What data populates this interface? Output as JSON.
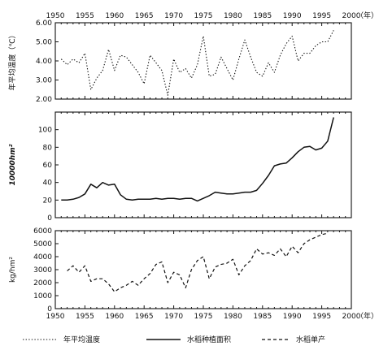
{
  "chart_data": [
    {
      "type": "line",
      "panel": "top",
      "ylabel": "年平均温度（℃）",
      "ylim": [
        2.0,
        6.0
      ],
      "yticks": [
        "2.00",
        "3.00",
        "4.00",
        "5.00",
        "6.00"
      ],
      "xlim": [
        1950,
        2000
      ],
      "xticks": [
        "1950",
        "1955",
        "1960",
        "1965",
        "1970",
        "1975",
        "1980",
        "1985",
        "1990",
        "1995",
        "2000"
      ],
      "xunit": "（年）",
      "series": [
        {
          "name": "年平均温度",
          "style": "dotted",
          "x": [
            1951,
            1952,
            1953,
            1954,
            1955,
            1956,
            1957,
            1958,
            1959,
            1960,
            1961,
            1962,
            1963,
            1964,
            1965,
            1966,
            1967,
            1968,
            1969,
            1970,
            1971,
            1972,
            1973,
            1974,
            1975,
            1976,
            1977,
            1978,
            1979,
            1980,
            1981,
            1982,
            1983,
            1984,
            1985,
            1986,
            1987,
            1988,
            1989,
            1990,
            1991,
            1992,
            1993,
            1994,
            1995,
            1996,
            1997
          ],
          "y": [
            4.1,
            3.8,
            4.1,
            3.9,
            4.4,
            2.5,
            3.1,
            3.5,
            4.6,
            3.5,
            4.3,
            4.2,
            3.8,
            3.4,
            2.8,
            4.3,
            3.9,
            3.5,
            2.2,
            4.1,
            3.4,
            3.6,
            3.1,
            3.8,
            5.3,
            3.2,
            3.3,
            4.2,
            3.6,
            3.0,
            4.1,
            5.1,
            4.2,
            3.4,
            3.2,
            3.9,
            3.4,
            4.3,
            4.9,
            5.3,
            4.0,
            4.4,
            4.4,
            4.8,
            5.0,
            5.0,
            5.6
          ]
        }
      ]
    },
    {
      "type": "line",
      "panel": "middle",
      "ylabel": "10000hm²",
      "ylim": [
        0,
        120
      ],
      "yticks": [
        "0",
        "20",
        "40",
        "60",
        "80",
        "100"
      ],
      "xlim": [
        1950,
        2000
      ],
      "series": [
        {
          "name": "水稻种植面积",
          "style": "solid",
          "x": [
            1951,
            1952,
            1953,
            1954,
            1955,
            1956,
            1957,
            1958,
            1959,
            1960,
            1961,
            1962,
            1963,
            1964,
            1965,
            1966,
            1967,
            1968,
            1969,
            1970,
            1971,
            1972,
            1973,
            1974,
            1975,
            1976,
            1977,
            1978,
            1979,
            1980,
            1981,
            1982,
            1983,
            1984,
            1985,
            1986,
            1987,
            1988,
            1989,
            1990,
            1991,
            1992,
            1993,
            1994,
            1995,
            1996,
            1997
          ],
          "y": [
            20,
            20,
            21,
            23,
            27,
            38,
            34,
            40,
            37,
            38,
            26,
            21,
            20,
            21,
            21,
            21,
            22,
            21,
            22,
            22,
            21,
            22,
            22,
            19,
            22,
            25,
            29,
            28,
            27,
            27,
            28,
            29,
            29,
            31,
            39,
            48,
            59,
            61,
            62,
            68,
            75,
            80,
            81,
            77,
            79,
            87,
            114
          ]
        }
      ]
    },
    {
      "type": "line",
      "panel": "bottom",
      "ylabel": "kg/hm²",
      "ylim": [
        0,
        6000
      ],
      "yticks": [
        "0",
        "1000",
        "2000",
        "3000",
        "4000",
        "5000",
        "6000"
      ],
      "xlim": [
        1950,
        2000
      ],
      "xticks": [
        "1950",
        "1955",
        "1960",
        "1965",
        "1970",
        "1975",
        "1980",
        "1985",
        "1990",
        "1995",
        "2000"
      ],
      "xunit": "（年）",
      "series": [
        {
          "name": "水稻单产",
          "style": "dashed",
          "x": [
            1952,
            1953,
            1954,
            1955,
            1956,
            1957,
            1958,
            1959,
            1960,
            1961,
            1962,
            1963,
            1964,
            1965,
            1966,
            1967,
            1968,
            1969,
            1970,
            1971,
            1972,
            1973,
            1974,
            1975,
            1976,
            1977,
            1978,
            1979,
            1980,
            1981,
            1982,
            1983,
            1984,
            1985,
            1986,
            1987,
            1988,
            1989,
            1990,
            1991,
            1992,
            1993,
            1994,
            1995,
            1996
          ],
          "y": [
            2900,
            3300,
            2800,
            3300,
            2100,
            2300,
            2300,
            1900,
            1300,
            1600,
            1800,
            2100,
            1800,
            2300,
            2700,
            3400,
            3600,
            2000,
            2800,
            2600,
            1600,
            3000,
            3700,
            4000,
            2300,
            3200,
            3400,
            3500,
            3800,
            2600,
            3300,
            3700,
            4600,
            4200,
            4300,
            4100,
            4600,
            4000,
            4800,
            4300,
            5000,
            5300,
            5500,
            5700,
            5800
          ]
        }
      ]
    }
  ],
  "legend": {
    "temp": "年平均温度",
    "area": "水稻种植面积",
    "yield": "水稻单产"
  }
}
